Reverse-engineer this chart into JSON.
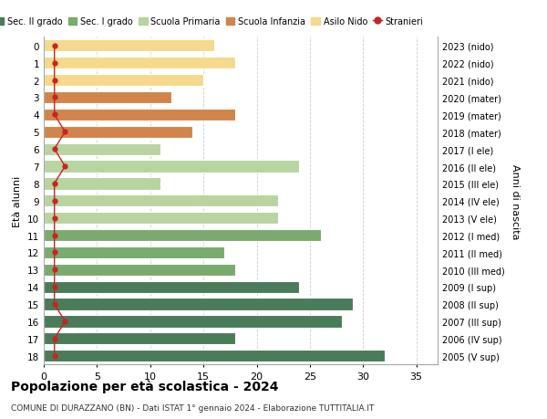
{
  "ages": [
    18,
    17,
    16,
    15,
    14,
    13,
    12,
    11,
    10,
    9,
    8,
    7,
    6,
    5,
    4,
    3,
    2,
    1,
    0
  ],
  "years": [
    "2005 (V sup)",
    "2006 (IV sup)",
    "2007 (III sup)",
    "2008 (II sup)",
    "2009 (I sup)",
    "2010 (III med)",
    "2011 (II med)",
    "2012 (I med)",
    "2013 (V ele)",
    "2014 (IV ele)",
    "2015 (III ele)",
    "2016 (II ele)",
    "2017 (I ele)",
    "2018 (mater)",
    "2019 (mater)",
    "2020 (mater)",
    "2021 (nido)",
    "2022 (nido)",
    "2023 (nido)"
  ],
  "values": [
    32,
    18,
    28,
    29,
    24,
    18,
    17,
    26,
    22,
    22,
    11,
    24,
    11,
    14,
    18,
    12,
    15,
    18,
    16
  ],
  "stranieri": [
    1,
    1,
    2,
    1,
    1,
    1,
    1,
    1,
    1,
    1,
    1,
    2,
    1,
    2,
    1,
    1,
    1,
    1,
    1
  ],
  "bar_colors": [
    "#4a7c59",
    "#4a7c59",
    "#4a7c59",
    "#4a7c59",
    "#4a7c59",
    "#7aab6e",
    "#7aab6e",
    "#7aab6e",
    "#b8d4a0",
    "#b8d4a0",
    "#b8d4a0",
    "#b8d4a0",
    "#b8d4a0",
    "#d2854a",
    "#d2854a",
    "#d2854a",
    "#f5d98c",
    "#f5d98c",
    "#f5d98c"
  ],
  "color_sec2": "#4a7c59",
  "color_sec1": "#7aab6e",
  "color_primaria": "#b8d4a0",
  "color_infanzia": "#d2854a",
  "color_nido": "#f5d98c",
  "color_stranieri": "#cc2222",
  "title": "Popolazione per età scolastica - 2024",
  "subtitle": "COMUNE DI DURAZZANO (BN) - Dati ISTAT 1° gennaio 2024 - Elaborazione TUTTITALIA.IT",
  "ylabel_left": "Età alunni",
  "ylabel_right": "Anni di nascita",
  "xlim": [
    0,
    37
  ],
  "xticks": [
    0,
    5,
    10,
    15,
    20,
    25,
    30,
    35
  ],
  "background_color": "#ffffff",
  "grid_color": "#cccccc"
}
